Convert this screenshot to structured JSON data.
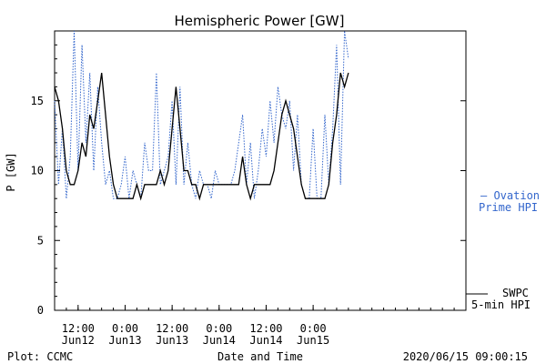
{
  "chart_data": {
    "type": "line",
    "title": "Hemispheric Power [GW]",
    "ylabel": "P [GW]",
    "xlabel": "Date and Time",
    "ylim": [
      0,
      20
    ],
    "yticks": [
      0,
      5,
      10,
      15
    ],
    "xlim": [
      "2020-06-11 06:00",
      "2020-06-15 15:00"
    ],
    "xticks": [
      {
        "t": "2020-06-11 12:00",
        "time": "12:00",
        "date": "Jun12"
      },
      {
        "t": "2020-06-12 00:00",
        "time": "0:00",
        "date": "Jun13"
      },
      {
        "t": "2020-06-12 12:00",
        "time": "12:00",
        "date": "Jun13"
      },
      {
        "t": "2020-06-13 00:00",
        "time": "0:00",
        "date": "Jun14"
      },
      {
        "t": "2020-06-13 12:00",
        "time": "12:00",
        "date": "Jun14"
      },
      {
        "t": "2020-06-14 00:00",
        "time": "0:00",
        "date": "Jun15"
      }
    ],
    "series": [
      {
        "name": "SWPC 5-min HPI",
        "color": "#000000",
        "style": "solid",
        "x": [
          "2020-06-11 06:00",
          "2020-06-11 07:00",
          "2020-06-11 08:00",
          "2020-06-11 09:00",
          "2020-06-11 10:00",
          "2020-06-11 11:00",
          "2020-06-11 12:00",
          "2020-06-11 13:00",
          "2020-06-11 14:00",
          "2020-06-11 15:00",
          "2020-06-11 16:00",
          "2020-06-11 17:00",
          "2020-06-11 18:00",
          "2020-06-11 19:00",
          "2020-06-11 20:00",
          "2020-06-11 21:00",
          "2020-06-11 22:00",
          "2020-06-11 23:00",
          "2020-06-12 00:00",
          "2020-06-12 01:00",
          "2020-06-12 02:00",
          "2020-06-12 03:00",
          "2020-06-12 04:00",
          "2020-06-12 05:00",
          "2020-06-12 06:00",
          "2020-06-12 07:00",
          "2020-06-12 08:00",
          "2020-06-12 09:00",
          "2020-06-12 10:00",
          "2020-06-12 11:00",
          "2020-06-12 12:00",
          "2020-06-12 13:00",
          "2020-06-12 14:00",
          "2020-06-12 15:00",
          "2020-06-12 16:00",
          "2020-06-12 17:00",
          "2020-06-12 18:00",
          "2020-06-12 19:00",
          "2020-06-12 20:00",
          "2020-06-12 21:00",
          "2020-06-12 22:00",
          "2020-06-12 23:00",
          "2020-06-13 00:00",
          "2020-06-13 01:00",
          "2020-06-13 02:00",
          "2020-06-13 03:00",
          "2020-06-13 04:00",
          "2020-06-13 05:00",
          "2020-06-13 06:00",
          "2020-06-13 07:00",
          "2020-06-13 08:00",
          "2020-06-13 09:00",
          "2020-06-13 10:00",
          "2020-06-13 11:00",
          "2020-06-13 12:00",
          "2020-06-13 13:00",
          "2020-06-13 14:00",
          "2020-06-13 15:00",
          "2020-06-13 16:00",
          "2020-06-13 17:00",
          "2020-06-13 18:00",
          "2020-06-13 19:00",
          "2020-06-13 20:00",
          "2020-06-13 21:00",
          "2020-06-13 22:00",
          "2020-06-13 23:00",
          "2020-06-14 00:00",
          "2020-06-14 01:00",
          "2020-06-14 02:00",
          "2020-06-14 03:00",
          "2020-06-14 04:00",
          "2020-06-14 05:00",
          "2020-06-14 06:00",
          "2020-06-14 07:00",
          "2020-06-14 08:00",
          "2020-06-14 09:00"
        ],
        "y": [
          16,
          15,
          13,
          10,
          9,
          9,
          10,
          12,
          11,
          14,
          13,
          15,
          17,
          14,
          11,
          9,
          8,
          8,
          8,
          8,
          8,
          9,
          8,
          9,
          9,
          9,
          9,
          10,
          9,
          10,
          13,
          16,
          13,
          10,
          10,
          9,
          9,
          8,
          9,
          9,
          9,
          9,
          9,
          9,
          9,
          9,
          9,
          9,
          11,
          9,
          8,
          9,
          9,
          9,
          9,
          9,
          10,
          12,
          14,
          15,
          14,
          13,
          11,
          9,
          8,
          8,
          8,
          8,
          8,
          8,
          9,
          12,
          14,
          17,
          16,
          17
        ]
      },
      {
        "name": "Ovation Prime HPI",
        "color": "#3366cc",
        "style": "dotted",
        "x": [
          "2020-06-11 06:00",
          "2020-06-11 07:00",
          "2020-06-11 08:00",
          "2020-06-11 09:00",
          "2020-06-11 10:00",
          "2020-06-11 11:00",
          "2020-06-11 12:00",
          "2020-06-11 13:00",
          "2020-06-11 14:00",
          "2020-06-11 15:00",
          "2020-06-11 16:00",
          "2020-06-11 17:00",
          "2020-06-11 18:00",
          "2020-06-11 19:00",
          "2020-06-11 20:00",
          "2020-06-11 21:00",
          "2020-06-11 22:00",
          "2020-06-11 23:00",
          "2020-06-12 00:00",
          "2020-06-12 01:00",
          "2020-06-12 02:00",
          "2020-06-12 03:00",
          "2020-06-12 04:00",
          "2020-06-12 05:00",
          "2020-06-12 06:00",
          "2020-06-12 07:00",
          "2020-06-12 08:00",
          "2020-06-12 09:00",
          "2020-06-12 10:00",
          "2020-06-12 11:00",
          "2020-06-12 12:00",
          "2020-06-12 13:00",
          "2020-06-12 14:00",
          "2020-06-12 15:00",
          "2020-06-12 16:00",
          "2020-06-12 17:00",
          "2020-06-12 18:00",
          "2020-06-12 19:00",
          "2020-06-12 20:00",
          "2020-06-12 21:00",
          "2020-06-12 22:00",
          "2020-06-12 23:00",
          "2020-06-13 00:00",
          "2020-06-13 01:00",
          "2020-06-13 02:00",
          "2020-06-13 03:00",
          "2020-06-13 04:00",
          "2020-06-13 05:00",
          "2020-06-13 06:00",
          "2020-06-13 07:00",
          "2020-06-13 08:00",
          "2020-06-13 09:00",
          "2020-06-13 10:00",
          "2020-06-13 11:00",
          "2020-06-13 12:00",
          "2020-06-13 13:00",
          "2020-06-13 14:00",
          "2020-06-13 15:00",
          "2020-06-13 16:00",
          "2020-06-13 17:00",
          "2020-06-13 18:00",
          "2020-06-13 19:00",
          "2020-06-13 20:00",
          "2020-06-13 21:00",
          "2020-06-13 22:00",
          "2020-06-13 23:00",
          "2020-06-14 00:00",
          "2020-06-14 01:00",
          "2020-06-14 02:00",
          "2020-06-14 03:00",
          "2020-06-14 04:00",
          "2020-06-14 05:00",
          "2020-06-14 06:00",
          "2020-06-14 07:00",
          "2020-06-14 08:00",
          "2020-06-14 09:00"
        ],
        "y": [
          15,
          9,
          13,
          8,
          11,
          20,
          10,
          19,
          12,
          17,
          10,
          16,
          12,
          9,
          10,
          8,
          8,
          9,
          11,
          8,
          10,
          9,
          8,
          12,
          10,
          10,
          17,
          9,
          10,
          11,
          15,
          9,
          16,
          9,
          12,
          9,
          8,
          10,
          9,
          9,
          8,
          10,
          9,
          9,
          9,
          9,
          10,
          12,
          14,
          9,
          12,
          8,
          10,
          13,
          11,
          15,
          12,
          16,
          14,
          13,
          15,
          10,
          14,
          9,
          8,
          8,
          13,
          8,
          8,
          14,
          9,
          13,
          19,
          9,
          20,
          18
        ]
      }
    ],
    "legend": [
      {
        "series": "Ovation Prime HPI",
        "line1": "— Ovation",
        "line2": "Prime HPI",
        "color": "#3366cc"
      },
      {
        "series": "SWPC 5-min HPI",
        "line1": "SWPC",
        "line2": "5-min HPI",
        "color": "#000000"
      }
    ],
    "legend_position": "right"
  },
  "footer": {
    "left": "Plot: CCMC",
    "center": "Date and Time",
    "right": "2020/06/15 09:00:15"
  }
}
